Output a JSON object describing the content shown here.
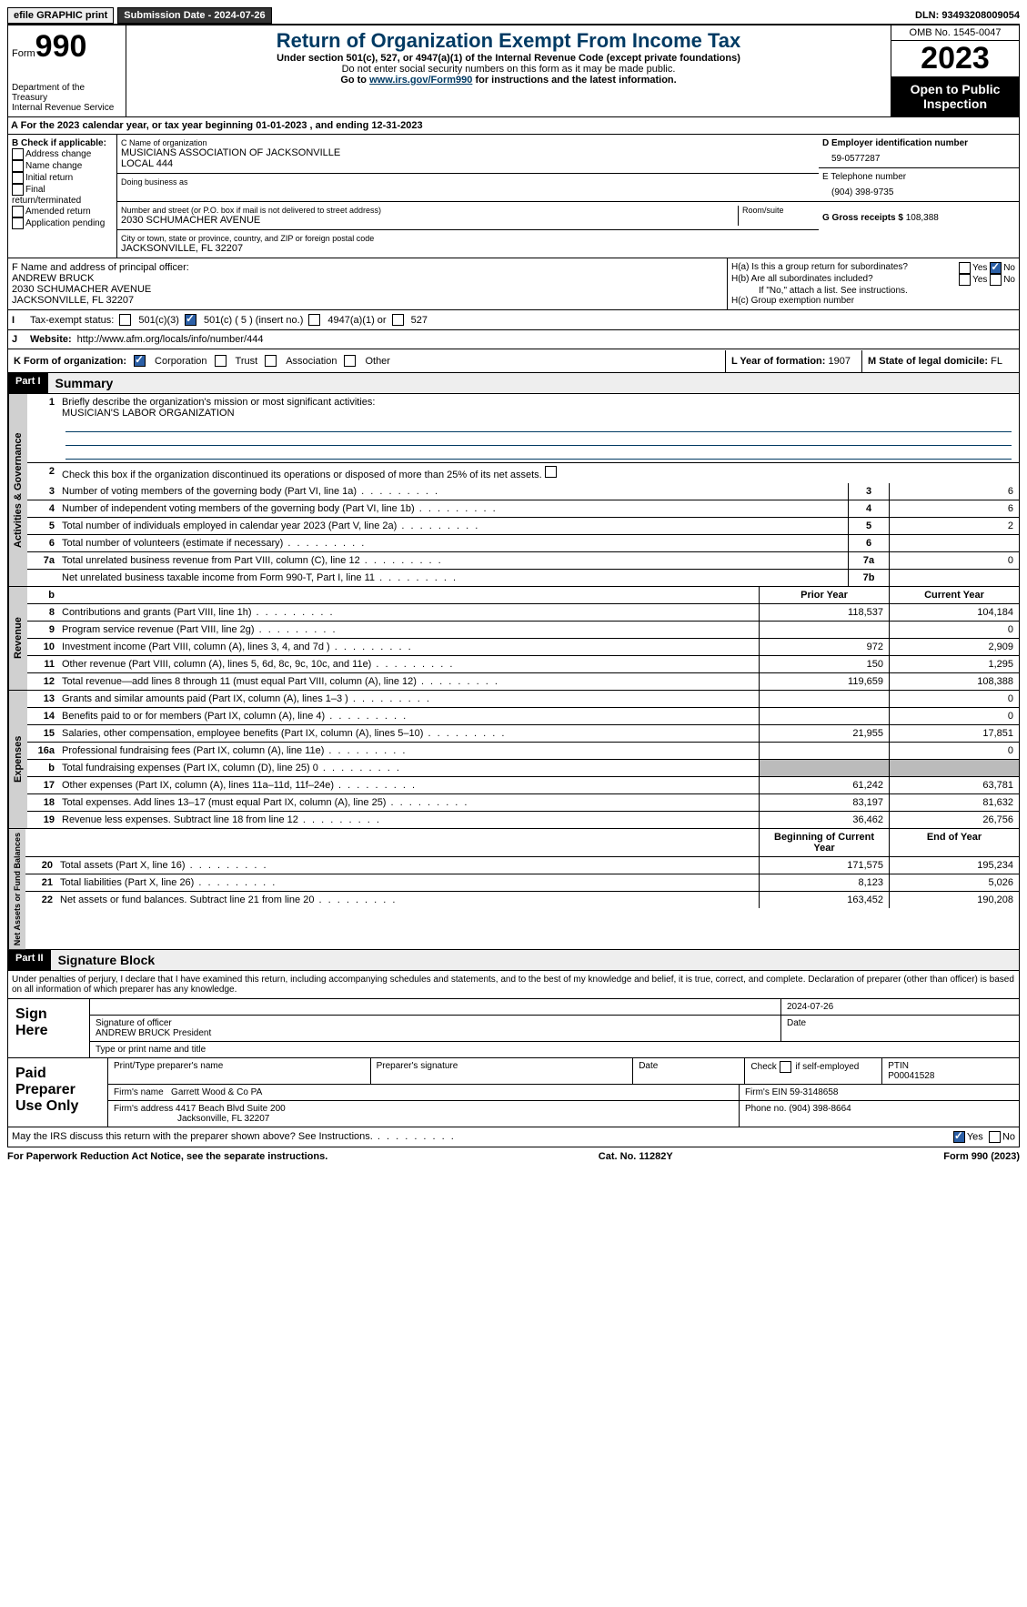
{
  "header": {
    "efile": "efile GRAPHIC print",
    "submission": "Submission Date - 2024-07-26",
    "dln": "DLN: 93493208009054"
  },
  "form": {
    "form_label": "Form",
    "number": "990",
    "dept1": "Department of the Treasury",
    "dept2": "Internal Revenue Service",
    "title": "Return of Organization Exempt From Income Tax",
    "sub1": "Under section 501(c), 527, or 4947(a)(1) of the Internal Revenue Code (except private foundations)",
    "sub2": "Do not enter social security numbers on this form as it may be made public.",
    "sub3_pre": "Go to ",
    "sub3_link": "www.irs.gov/Form990",
    "sub3_post": " for instructions and the latest information.",
    "omb": "OMB No. 1545-0047",
    "year": "2023",
    "open": "Open to Public Inspection"
  },
  "row_a": "For the 2023 calendar year, or tax year beginning 01-01-2023   , and ending 12-31-2023",
  "box_b": {
    "label": "B Check if applicable:",
    "opts": [
      "Address change",
      "Name change",
      "Initial return",
      "Final return/terminated",
      "Amended return",
      "Application pending"
    ]
  },
  "box_c": {
    "name_label": "C Name of organization",
    "name1": "MUSICIANS ASSOCIATION OF JACKSONVILLE",
    "name2": "LOCAL 444",
    "dba_label": "Doing business as",
    "addr_label": "Number and street (or P.O. box if mail is not delivered to street address)",
    "addr": "2030 SCHUMACHER AVENUE",
    "room_label": "Room/suite",
    "city_label": "City or town, state or province, country, and ZIP or foreign postal code",
    "city": "JACKSONVILLE, FL  32207"
  },
  "box_d": {
    "label": "D Employer identification number",
    "val": "59-0577287"
  },
  "box_e": {
    "label": "E Telephone number",
    "val": "(904) 398-9735"
  },
  "box_g": {
    "label": "G Gross receipts $",
    "val": "108,388"
  },
  "box_f": {
    "label": "F  Name and address of principal officer:",
    "name": "ANDREW BRUCK",
    "addr1": "2030 SCHUMACHER AVENUE",
    "addr2": "JACKSONVILLE, FL  32207"
  },
  "box_h": {
    "ha": "H(a)  Is this a group return for subordinates?",
    "hb": "H(b)  Are all subordinates included?",
    "hb_note": "If \"No,\" attach a list. See instructions.",
    "hc": "H(c)  Group exemption number",
    "yes": "Yes",
    "no": "No"
  },
  "box_i": {
    "label": "Tax-exempt status:",
    "opt1": "501(c)(3)",
    "opt2": "501(c) ( 5 ) (insert no.)",
    "opt3": "4947(a)(1) or",
    "opt4": "527"
  },
  "box_j": {
    "label": "Website:",
    "val": "http://www.afm.org/locals/info/number/444"
  },
  "box_k": {
    "label": "K Form of organization:",
    "opt1": "Corporation",
    "opt2": "Trust",
    "opt3": "Association",
    "opt4": "Other"
  },
  "box_l": {
    "label": "L Year of formation:",
    "val": "1907"
  },
  "box_m": {
    "label": "M State of legal domicile:",
    "val": "FL"
  },
  "part1": {
    "hdr": "Part I",
    "title": "Summary"
  },
  "summary": {
    "q1_label": "Briefly describe the organization's mission or most significant activities:",
    "q1_text": "MUSICIAN'S LABOR ORGANIZATION",
    "q2": "Check this box      if the organization discontinued its operations or disposed of more than 25% of its net assets.",
    "rows_ag": [
      {
        "n": "3",
        "t": "Number of voting members of the governing body (Part VI, line 1a)",
        "b": "3",
        "v": "6"
      },
      {
        "n": "4",
        "t": "Number of independent voting members of the governing body (Part VI, line 1b)",
        "b": "4",
        "v": "6"
      },
      {
        "n": "5",
        "t": "Total number of individuals employed in calendar year 2023 (Part V, line 2a)",
        "b": "5",
        "v": "2"
      },
      {
        "n": "6",
        "t": "Total number of volunteers (estimate if necessary)",
        "b": "6",
        "v": ""
      },
      {
        "n": "7a",
        "t": "Total unrelated business revenue from Part VIII, column (C), line 12",
        "b": "7a",
        "v": "0"
      },
      {
        "n": "",
        "t": "Net unrelated business taxable income from Form 990-T, Part I, line 11",
        "b": "7b",
        "v": ""
      }
    ],
    "col_prior": "Prior Year",
    "col_curr": "Current Year",
    "rows_rev": [
      {
        "n": "8",
        "t": "Contributions and grants (Part VIII, line 1h)",
        "p": "118,537",
        "c": "104,184"
      },
      {
        "n": "9",
        "t": "Program service revenue (Part VIII, line 2g)",
        "p": "",
        "c": "0"
      },
      {
        "n": "10",
        "t": "Investment income (Part VIII, column (A), lines 3, 4, and 7d )",
        "p": "972",
        "c": "2,909"
      },
      {
        "n": "11",
        "t": "Other revenue (Part VIII, column (A), lines 5, 6d, 8c, 9c, 10c, and 11e)",
        "p": "150",
        "c": "1,295"
      },
      {
        "n": "12",
        "t": "Total revenue—add lines 8 through 11 (must equal Part VIII, column (A), line 12)",
        "p": "119,659",
        "c": "108,388"
      }
    ],
    "rows_exp": [
      {
        "n": "13",
        "t": "Grants and similar amounts paid (Part IX, column (A), lines 1–3 )",
        "p": "",
        "c": "0"
      },
      {
        "n": "14",
        "t": "Benefits paid to or for members (Part IX, column (A), line 4)",
        "p": "",
        "c": "0"
      },
      {
        "n": "15",
        "t": "Salaries, other compensation, employee benefits (Part IX, column (A), lines 5–10)",
        "p": "21,955",
        "c": "17,851"
      },
      {
        "n": "16a",
        "t": "Professional fundraising fees (Part IX, column (A), line 11e)",
        "p": "",
        "c": "0"
      },
      {
        "n": "b",
        "t": "Total fundraising expenses (Part IX, column (D), line 25) 0",
        "p": "SHADE",
        "c": "SHADE"
      },
      {
        "n": "17",
        "t": "Other expenses (Part IX, column (A), lines 11a–11d, 11f–24e)",
        "p": "61,242",
        "c": "63,781"
      },
      {
        "n": "18",
        "t": "Total expenses. Add lines 13–17 (must equal Part IX, column (A), line 25)",
        "p": "83,197",
        "c": "81,632"
      },
      {
        "n": "19",
        "t": "Revenue less expenses. Subtract line 18 from line 12",
        "p": "36,462",
        "c": "26,756"
      }
    ],
    "col_beg": "Beginning of Current Year",
    "col_end": "End of Year",
    "rows_na": [
      {
        "n": "20",
        "t": "Total assets (Part X, line 16)",
        "p": "171,575",
        "c": "195,234"
      },
      {
        "n": "21",
        "t": "Total liabilities (Part X, line 26)",
        "p": "8,123",
        "c": "5,026"
      },
      {
        "n": "22",
        "t": "Net assets or fund balances. Subtract line 21 from line 20",
        "p": "163,452",
        "c": "190,208"
      }
    ],
    "vl_ag": "Activities & Governance",
    "vl_rev": "Revenue",
    "vl_exp": "Expenses",
    "vl_na": "Net Assets or Fund Balances"
  },
  "part2": {
    "hdr": "Part II",
    "title": "Signature Block"
  },
  "penalties": "Under penalties of perjury, I declare that I have examined this return, including accompanying schedules and statements, and to the best of my knowledge and belief, it is true, correct, and complete. Declaration of preparer (other than officer) is based on all information of which preparer has any knowledge.",
  "sign": {
    "here": "Sign Here",
    "date": "2024-07-26",
    "sig_label": "Signature of officer",
    "date_label": "Date",
    "officer": "ANDREW BRUCK President",
    "type_label": "Type or print name and title"
  },
  "prep": {
    "title": "Paid Preparer Use Only",
    "h1": "Print/Type preparer's name",
    "h2": "Preparer's signature",
    "h3": "Date",
    "h4_pre": "Check",
    "h4_post": "if self-employed",
    "h5": "PTIN",
    "ptin": "P00041528",
    "firm_name_l": "Firm's name",
    "firm_name": "Garrett Wood & Co PA",
    "firm_ein_l": "Firm's EIN",
    "firm_ein": "59-3148658",
    "firm_addr_l": "Firm's address",
    "firm_addr1": "4417 Beach Blvd Suite 200",
    "firm_addr2": "Jacksonville, FL  32207",
    "phone_l": "Phone no.",
    "phone": "(904) 398-8664"
  },
  "discuss": "May the IRS discuss this return with the preparer shown above? See Instructions.",
  "footer": {
    "paperwork": "For Paperwork Reduction Act Notice, see the separate instructions.",
    "cat": "Cat. No. 11282Y",
    "form": "Form 990 (2023)"
  }
}
